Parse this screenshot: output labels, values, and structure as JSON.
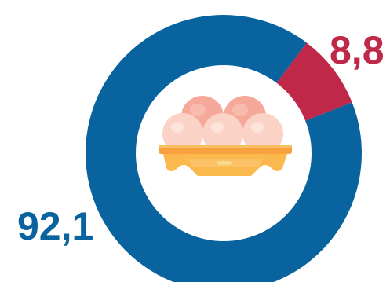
{
  "chart_data": {
    "type": "pie",
    "variant": "donut",
    "slices": [
      {
        "label": "",
        "value": 8.8,
        "display": "8,8",
        "color": "#c0284a"
      },
      {
        "label": "",
        "value": 92.1,
        "display": "92,1",
        "color": "#08639e"
      }
    ],
    "center_icon": "egg-carton-icon"
  },
  "colors": {
    "background": "#ffffff",
    "hole": "#ffffff"
  }
}
